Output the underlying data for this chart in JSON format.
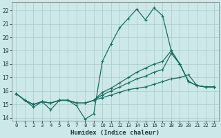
{
  "title": "",
  "xlabel": "Humidex (Indice chaleur)",
  "bg_color": "#cce8e8",
  "line_color": "#1a6b60",
  "grid_color": "#aacccc",
  "xlim": [
    -0.5,
    23.5
  ],
  "ylim": [
    13.8,
    22.6
  ],
  "xticks": [
    0,
    1,
    2,
    3,
    4,
    5,
    6,
    7,
    8,
    9,
    10,
    11,
    12,
    13,
    14,
    15,
    16,
    17,
    18,
    19,
    20,
    21,
    22,
    23
  ],
  "yticks": [
    14,
    15,
    16,
    17,
    18,
    19,
    20,
    21,
    22
  ],
  "series": [
    [
      15.8,
      15.3,
      14.8,
      15.2,
      14.6,
      15.3,
      15.3,
      14.9,
      13.9,
      14.3,
      18.2,
      19.5,
      20.7,
      21.4,
      22.1,
      21.3,
      22.2,
      21.6,
      19.0,
      18.0,
      16.7,
      16.4,
      16.3,
      16.3
    ],
    [
      15.8,
      15.3,
      15.0,
      15.2,
      15.1,
      15.3,
      15.3,
      15.1,
      15.1,
      15.3,
      15.5,
      15.7,
      15.9,
      16.1,
      16.2,
      16.3,
      16.5,
      16.7,
      16.9,
      17.0,
      17.2,
      16.4,
      16.3,
      16.3
    ],
    [
      15.8,
      15.3,
      15.0,
      15.2,
      15.1,
      15.3,
      15.3,
      15.1,
      15.1,
      15.3,
      15.7,
      16.0,
      16.3,
      16.6,
      16.9,
      17.1,
      17.4,
      17.6,
      18.8,
      18.0,
      16.7,
      16.4,
      16.3,
      16.3
    ],
    [
      15.8,
      15.3,
      15.0,
      15.2,
      15.1,
      15.3,
      15.3,
      15.1,
      15.1,
      15.3,
      15.9,
      16.2,
      16.6,
      17.0,
      17.4,
      17.7,
      18.0,
      18.2,
      19.0,
      18.0,
      16.7,
      16.4,
      16.3,
      16.3
    ]
  ]
}
